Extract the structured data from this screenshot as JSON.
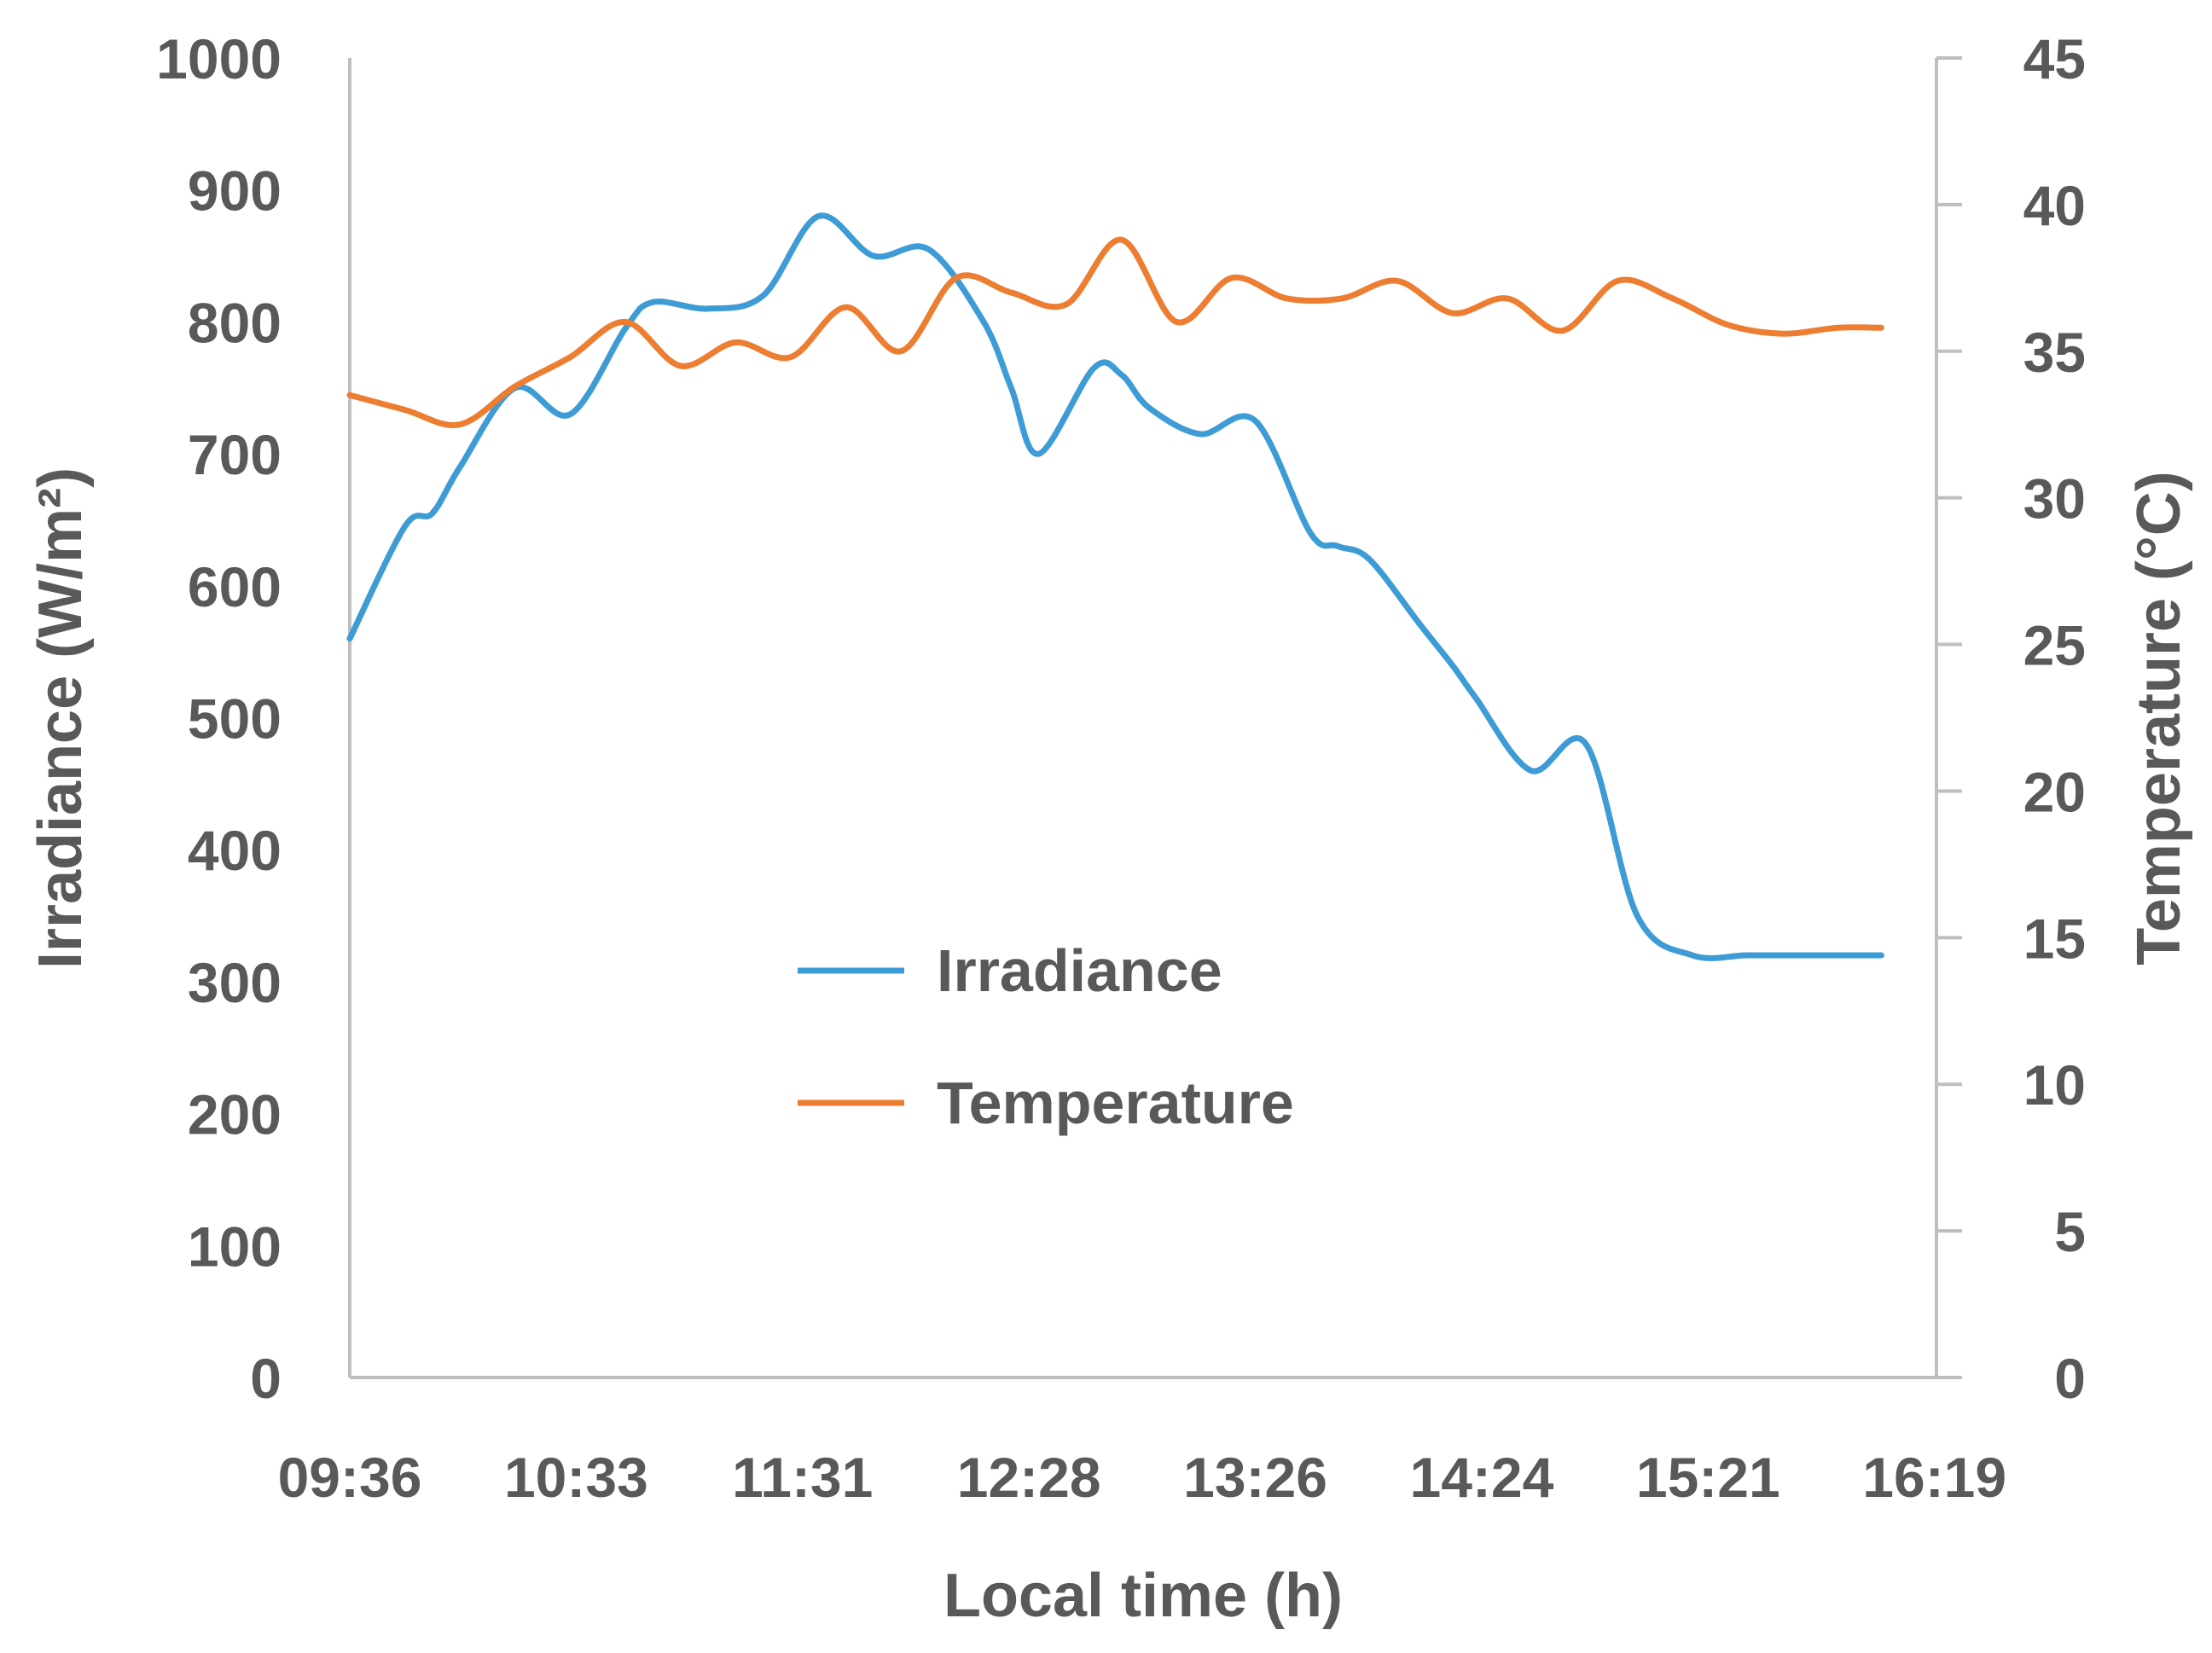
{
  "chart_data": {
    "type": "line",
    "title": "",
    "xlabel": "Local time (h)",
    "ylabel": "Irradiance (W/m²)",
    "y2label": "Temperature (°C)",
    "x_ticks": [
      "09:36",
      "10:33",
      "11:31",
      "12:28",
      "13:26",
      "14:24",
      "15:21",
      "16:19"
    ],
    "x_range_minutes": [
      576,
      979
    ],
    "ylim": [
      0,
      1000
    ],
    "y_ticks": [
      0,
      100,
      200,
      300,
      400,
      500,
      600,
      700,
      800,
      900,
      1000
    ],
    "y2lim": [
      0,
      45
    ],
    "y2_ticks": [
      0,
      5,
      10,
      15,
      20,
      25,
      30,
      35,
      40,
      45
    ],
    "legend_position": "center",
    "series": [
      {
        "name": "Irradiance",
        "axis": "left",
        "color": "#3d9bd6",
        "x": [
          576,
          590,
          597,
          604,
          618,
          632,
          646,
          653,
          667,
          681,
          695,
          709,
          723,
          737,
          744,
          751,
          765,
          772,
          779,
          792,
          806,
          820,
          827,
          835,
          848,
          856,
          862,
          876,
          890,
          903,
          917,
          931,
          944,
          958,
          965
        ],
        "values": [
          560,
          645,
          655,
          690,
          750,
          730,
          795,
          815,
          810,
          820,
          880,
          850,
          855,
          800,
          750,
          700,
          765,
          760,
          735,
          715,
          725,
          640,
          630,
          620,
          570,
          540,
          515,
          460,
          480,
          350,
          320,
          320,
          320,
          320,
          320
        ]
      },
      {
        "name": "Temperature",
        "axis": "right",
        "color": "#ed7d31",
        "x": [
          576,
          590,
          604,
          618,
          632,
          646,
          660,
          674,
          688,
          702,
          716,
          730,
          744,
          758,
          772,
          786,
          800,
          814,
          828,
          842,
          856,
          870,
          884,
          898,
          912,
          926,
          940,
          954,
          965
        ],
        "values": [
          33.5,
          33,
          32.5,
          33.8,
          34.8,
          36,
          34.5,
          35.3,
          34.8,
          36.5,
          35,
          37.5,
          37,
          36.6,
          38.8,
          36,
          37.5,
          36.8,
          36.8,
          37.4,
          36.3,
          36.8,
          35.7,
          37.4,
          36.8,
          35.9,
          35.6,
          35.8,
          35.8
        ]
      }
    ]
  }
}
